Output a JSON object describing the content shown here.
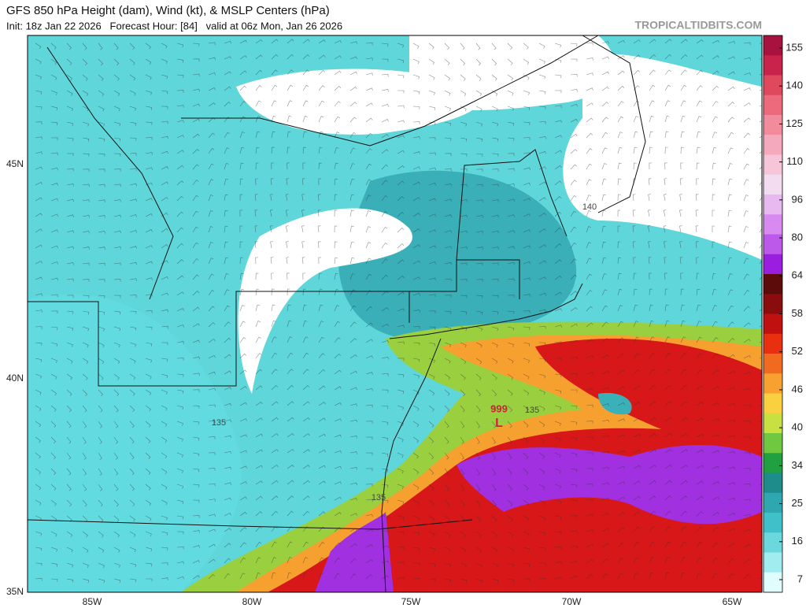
{
  "header": {
    "title": "GFS 850 hPa Height (dam), Wind (kt), & MSLP Centers (hPa)",
    "subtitle": "Init: 18z Jan 22 2026   Forecast Hour: [84]   valid at 06z Mon, Jan 26 2026",
    "watermark": "TROPICALTIDBITS.COM"
  },
  "map": {
    "lon_labels": [
      "85W",
      "80W",
      "75W",
      "70W",
      "65W"
    ],
    "lat_labels": [
      "45N",
      "40N",
      "35N"
    ],
    "contour_labels": [
      "135",
      "135",
      "135",
      "140"
    ],
    "low": {
      "pressure": "999",
      "symbol": "L"
    }
  },
  "colorbar": {
    "ticks": [
      155,
      140,
      125,
      110,
      96,
      80,
      64,
      58,
      52,
      46,
      40,
      34,
      25,
      16,
      7
    ],
    "colors": [
      "#a8123f",
      "#c8234a",
      "#e0485e",
      "#ec6a7c",
      "#f28c9c",
      "#f4aabc",
      "#f6c6d8",
      "#f4dcf0",
      "#e8b8f0",
      "#d88af0",
      "#bc58ea",
      "#9a1ee0",
      "#5c0a0a",
      "#8a0c0c",
      "#c01010",
      "#e83010",
      "#f06a20",
      "#f8a030",
      "#f8d040",
      "#c8e040",
      "#70c840",
      "#20a040",
      "#1e8c8a",
      "#2fa7b0",
      "#40c0c8",
      "#6ad8dc",
      "#a0ecee",
      "#e0fcfc"
    ]
  }
}
